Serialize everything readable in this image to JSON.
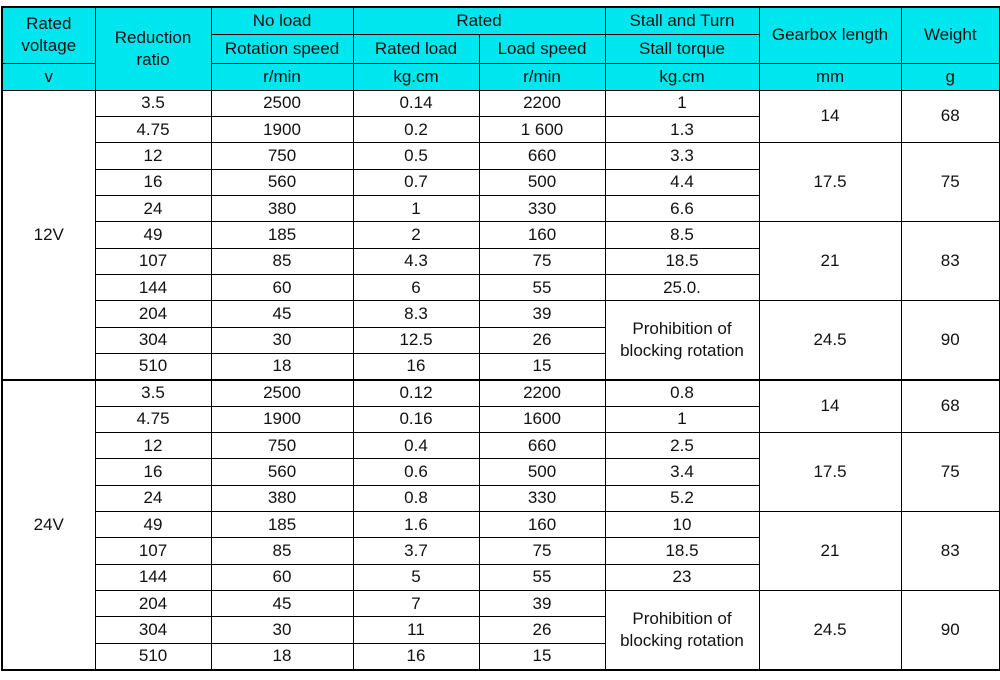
{
  "header": {
    "rated_voltage": "Rated\nvoltage",
    "reduction_ratio": "Reduction\nratio",
    "no_load": "No load",
    "rated": "Rated",
    "stall_and_turn": "Stall and Turn",
    "rotation_speed": "Rotation speed",
    "rated_load": "Rated load",
    "load_speed": "Load speed",
    "stall_torque": "Stall torque",
    "gearbox_length": "Gearbox length",
    "weight": "Weight"
  },
  "units": [
    "v",
    "r/min",
    "kg.cm",
    "r/min",
    "kg.cm",
    "mm",
    "g"
  ],
  "groups": [
    {
      "voltage": "12V",
      "subgroups": [
        {
          "gearbox_length": "14",
          "weight": "68",
          "rows": [
            [
              "3.5",
              "2500",
              "0.14",
              "2200",
              "1"
            ],
            [
              "4.75",
              "1900",
              "0.2",
              "1 600",
              "1.3"
            ]
          ]
        },
        {
          "gearbox_length": "17.5",
          "weight": "75",
          "rows": [
            [
              "12",
              "750",
              "0.5",
              "660",
              "3.3"
            ],
            [
              "16",
              "560",
              "0.7",
              "500",
              "4.4"
            ],
            [
              "24",
              "380",
              "1",
              "330",
              "6.6"
            ]
          ]
        },
        {
          "gearbox_length": "21",
          "weight": "83",
          "rows": [
            [
              "49",
              "185",
              "2",
              "160",
              "8.5"
            ],
            [
              "107",
              "85",
              "4.3",
              "75",
              "18.5"
            ],
            [
              "144",
              "60",
              "6",
              "55",
              "25.0."
            ]
          ]
        },
        {
          "gearbox_length": "24.5",
          "weight": "90",
          "stall_torque": "Prohibition of\nblocking rotation",
          "rows": [
            [
              "204",
              "45",
              "8.3",
              "39"
            ],
            [
              "304",
              "30",
              "12.5",
              "26"
            ],
            [
              "510",
              "18",
              "16",
              "15"
            ]
          ]
        }
      ]
    },
    {
      "voltage": "24V",
      "subgroups": [
        {
          "gearbox_length": "14",
          "weight": "68",
          "rows": [
            [
              "3.5",
              "2500",
              "0.12",
              "2200",
              "0.8"
            ],
            [
              "4.75",
              "1900",
              "0.16",
              "1600",
              "1"
            ]
          ]
        },
        {
          "gearbox_length": "17.5",
          "weight": "75",
          "rows": [
            [
              "12",
              "750",
              "0.4",
              "660",
              "2.5"
            ],
            [
              "16",
              "560",
              "0.6",
              "500",
              "3.4"
            ],
            [
              "24",
              "380",
              "0.8",
              "330",
              "5.2"
            ]
          ]
        },
        {
          "gearbox_length": "21",
          "weight": "83",
          "rows": [
            [
              "49",
              "185",
              "1.6",
              "160",
              "10"
            ],
            [
              "107",
              "85",
              "3.7",
              "75",
              "18.5"
            ],
            [
              "144",
              "60",
              "5",
              "55",
              "23"
            ]
          ]
        },
        {
          "gearbox_length": "24.5",
          "weight": "90",
          "stall_torque": "Prohibition of\nblocking rotation",
          "rows": [
            [
              "204",
              "45",
              "7",
              "39"
            ],
            [
              "304",
              "30",
              "11",
              "26"
            ],
            [
              "510",
              "18",
              "16",
              "15"
            ]
          ]
        }
      ]
    }
  ]
}
